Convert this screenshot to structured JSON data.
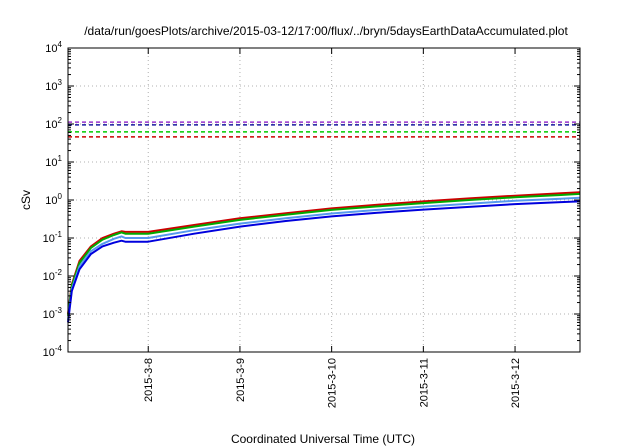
{
  "chart_data": {
    "type": "line",
    "title": "/data/run/goesPlots/archive/2015-03-12/17:00/flux/../bryn/5daysEarthDataAccumulated.plot",
    "xlabel": "Coordinated Universal Time (UTC)",
    "ylabel": "cSv",
    "y_scale": "log",
    "ylim": [
      0.0001,
      10000
    ],
    "xlim": [
      "2015-03-07 03:00",
      "2015-03-12 17:00"
    ],
    "x_ticks": [
      "2015-3-8",
      "2015-3-9",
      "2015-3-10",
      "2015-3-11",
      "2015-3-12"
    ],
    "y_ticks": [
      {
        "base": "10",
        "exp": "-4"
      },
      {
        "base": "10",
        "exp": "-3"
      },
      {
        "base": "10",
        "exp": "-2"
      },
      {
        "base": "10",
        "exp": "-1"
      },
      {
        "base": "10",
        "exp": "0"
      },
      {
        "base": "10",
        "exp": "1"
      },
      {
        "base": "10",
        "exp": "2"
      },
      {
        "base": "10",
        "exp": "3"
      },
      {
        "base": "10",
        "exp": "4"
      }
    ],
    "grid": true,
    "legend": "none",
    "x": [
      "2015-03-07 03:00",
      "2015-03-07 04:00",
      "2015-03-07 06:00",
      "2015-03-07 09:00",
      "2015-03-07 12:00",
      "2015-03-07 15:00",
      "2015-03-07 17:00",
      "2015-03-07 18:00",
      "2015-03-07 22:00",
      "2015-03-08 00:00",
      "2015-03-08 12:00",
      "2015-03-09 00:00",
      "2015-03-09 12:00",
      "2015-03-10 00:00",
      "2015-03-10 12:00",
      "2015-03-11 00:00",
      "2015-03-11 12:00",
      "2015-03-12 00:00",
      "2015-03-12 12:00",
      "2015-03-12 17:00"
    ],
    "series": [
      {
        "color": "#cc0000",
        "values": [
          0.001,
          0.006,
          0.025,
          0.06,
          0.1,
          0.13,
          0.15,
          0.145,
          0.145,
          0.145,
          0.22,
          0.33,
          0.45,
          0.6,
          0.75,
          0.92,
          1.1,
          1.3,
          1.5,
          1.6
        ]
      },
      {
        "color": "#00aa00",
        "values": [
          0.0009,
          0.0055,
          0.022,
          0.055,
          0.09,
          0.12,
          0.14,
          0.13,
          0.13,
          0.13,
          0.2,
          0.3,
          0.41,
          0.55,
          0.68,
          0.83,
          1.0,
          1.18,
          1.35,
          1.45
        ]
      },
      {
        "color": "#5599ee",
        "values": [
          0.0007,
          0.0045,
          0.018,
          0.045,
          0.07,
          0.095,
          0.11,
          0.1,
          0.1,
          0.1,
          0.16,
          0.24,
          0.33,
          0.44,
          0.55,
          0.67,
          0.8,
          0.95,
          1.08,
          1.15
        ]
      },
      {
        "color": "#0000dd",
        "values": [
          0.0006,
          0.004,
          0.015,
          0.038,
          0.06,
          0.075,
          0.085,
          0.08,
          0.08,
          0.08,
          0.13,
          0.2,
          0.28,
          0.37,
          0.46,
          0.56,
          0.66,
          0.78,
          0.88,
          0.92
        ]
      }
    ],
    "threshold_lines": [
      {
        "color": "#9933cc",
        "value": 112
      },
      {
        "color": "#1a1aa0",
        "value": 95
      },
      {
        "color": "#00cc00",
        "value": 62
      },
      {
        "color": "#cc0000",
        "value": 46
      }
    ]
  }
}
